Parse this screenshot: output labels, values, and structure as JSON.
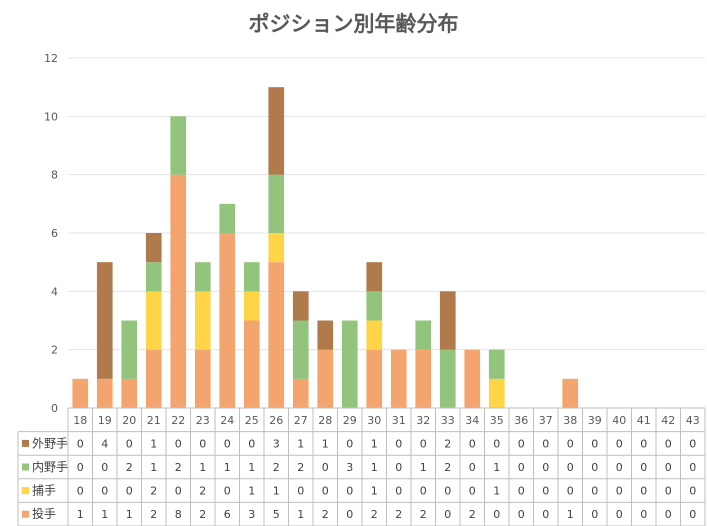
{
  "chart_data": {
    "type": "bar",
    "stacked": true,
    "title": "ポジション別年齢分布",
    "xlabel": "",
    "ylabel": "",
    "ylim": [
      0,
      12
    ],
    "yticks": [
      0,
      2,
      4,
      6,
      8,
      10,
      12
    ],
    "grid": true,
    "legend": "data-table",
    "categories": [
      "18",
      "19",
      "20",
      "21",
      "22",
      "23",
      "24",
      "25",
      "26",
      "27",
      "28",
      "29",
      "30",
      "31",
      "32",
      "33",
      "34",
      "35",
      "36",
      "37",
      "38",
      "39",
      "40",
      "41",
      "42",
      "43"
    ],
    "series": [
      {
        "name": "投手",
        "color": "#F4A46E",
        "values": [
          1,
          1,
          1,
          2,
          8,
          2,
          6,
          3,
          5,
          1,
          2,
          0,
          2,
          2,
          2,
          0,
          2,
          0,
          0,
          0,
          1,
          0,
          0,
          0,
          0,
          0
        ]
      },
      {
        "name": "捕手",
        "color": "#FFD447",
        "values": [
          0,
          0,
          0,
          2,
          0,
          2,
          0,
          1,
          1,
          0,
          0,
          0,
          1,
          0,
          0,
          0,
          0,
          1,
          0,
          0,
          0,
          0,
          0,
          0,
          0,
          0
        ]
      },
      {
        "name": "内野手",
        "color": "#93C47D",
        "values": [
          0,
          0,
          2,
          1,
          2,
          1,
          1,
          1,
          2,
          2,
          0,
          3,
          1,
          0,
          1,
          2,
          0,
          1,
          0,
          0,
          0,
          0,
          0,
          0,
          0,
          0
        ]
      },
      {
        "name": "外野手",
        "color": "#B07A4C",
        "values": [
          0,
          4,
          0,
          1,
          0,
          0,
          0,
          0,
          3,
          1,
          1,
          0,
          1,
          0,
          0,
          2,
          0,
          0,
          0,
          0,
          0,
          0,
          0,
          0,
          0,
          0
        ]
      }
    ],
    "table_row_order": [
      3,
      2,
      1,
      0
    ]
  }
}
